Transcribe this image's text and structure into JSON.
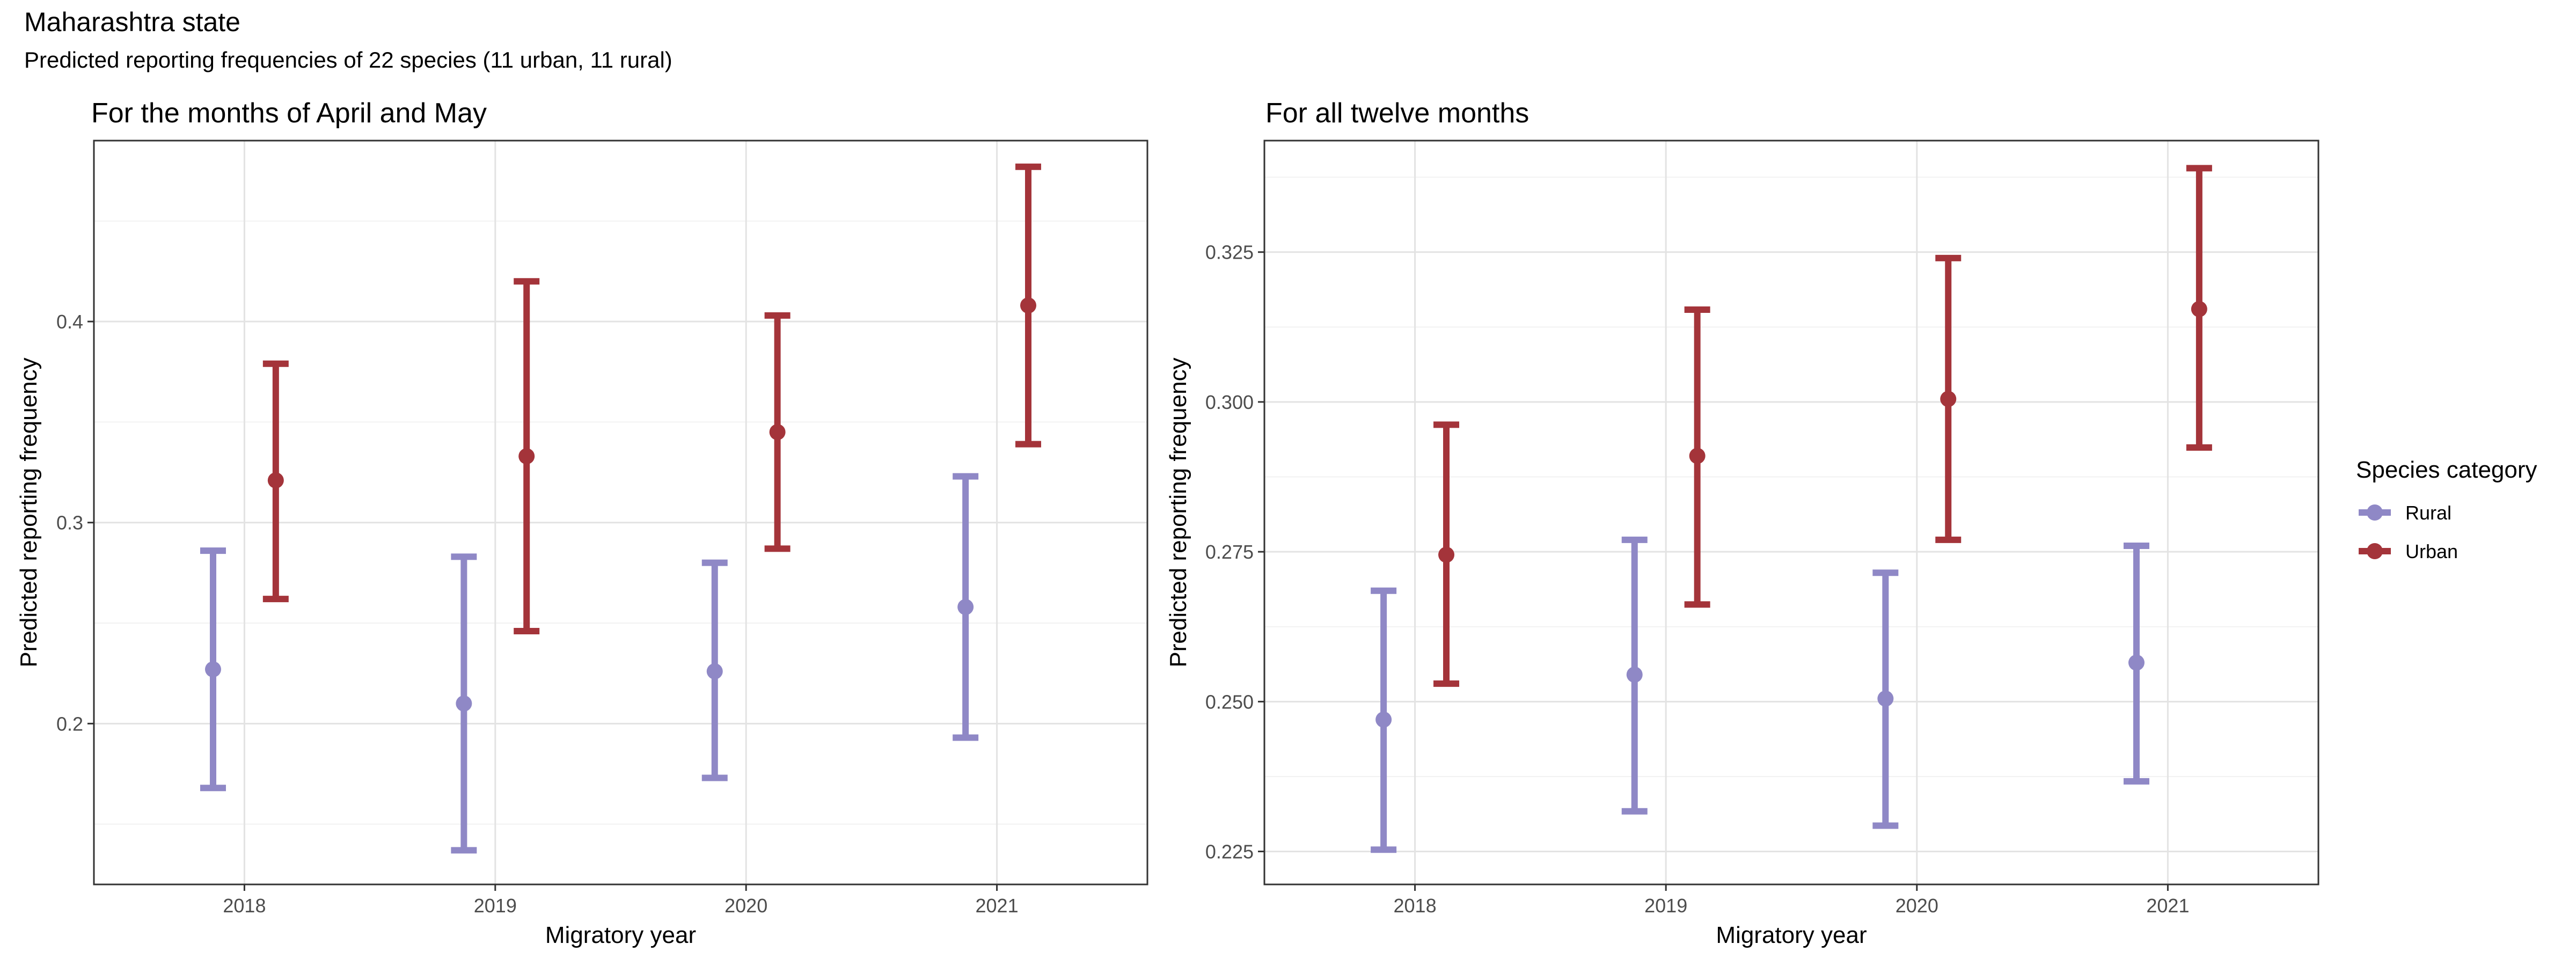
{
  "title": "Maharashtra state",
  "subtitle": "Predicted reporting frequencies of 22 species (11 urban, 11 rural)",
  "colors": {
    "Rural": "#8f88c6",
    "Urban": "#a4343a"
  },
  "legend": {
    "title": "Species category",
    "items": [
      "Rural",
      "Urban"
    ],
    "position": "right"
  },
  "chart_data": [
    {
      "type": "errorbar",
      "title": "For the months of April and May",
      "xlabel": "Migratory year",
      "ylabel": "Predicted reporting frequency",
      "categories": [
        "2018",
        "2019",
        "2020",
        "2021"
      ],
      "ylim": [
        0.12,
        0.49
      ],
      "yticks": [
        0.2,
        0.3,
        0.4
      ],
      "ytick_labels": [
        "0.2",
        "0.3",
        "0.4"
      ],
      "grid": true,
      "series": [
        {
          "name": "Rural",
          "values": [
            0.227,
            0.21,
            0.226,
            0.258
          ],
          "lower": [
            0.168,
            0.137,
            0.173,
            0.193
          ],
          "upper": [
            0.286,
            0.283,
            0.28,
            0.323
          ]
        },
        {
          "name": "Urban",
          "values": [
            0.321,
            0.333,
            0.345,
            0.408
          ],
          "lower": [
            0.262,
            0.246,
            0.287,
            0.339
          ],
          "upper": [
            0.379,
            0.42,
            0.403,
            0.477
          ]
        }
      ]
    },
    {
      "type": "errorbar",
      "title": "For all twelve months",
      "xlabel": "Migratory year",
      "ylabel": "Predicted reporting frequency",
      "categories": [
        "2018",
        "2019",
        "2020",
        "2021"
      ],
      "ylim": [
        0.2195,
        0.3436
      ],
      "yticks": [
        0.225,
        0.25,
        0.275,
        0.3,
        0.325
      ],
      "ytick_labels": [
        "0.225",
        "0.250",
        "0.275",
        "0.300",
        "0.325"
      ],
      "grid": true,
      "series": [
        {
          "name": "Rural",
          "values": [
            0.247,
            0.2545,
            0.2505,
            0.2565
          ],
          "lower": [
            0.2253,
            0.2317,
            0.2293,
            0.2367
          ],
          "upper": [
            0.2685,
            0.277,
            0.2715,
            0.276
          ]
        },
        {
          "name": "Urban",
          "values": [
            0.2745,
            0.291,
            0.3005,
            0.3155
          ],
          "lower": [
            0.253,
            0.2662,
            0.277,
            0.2924
          ],
          "upper": [
            0.2962,
            0.3154,
            0.324,
            0.339
          ]
        }
      ]
    }
  ]
}
